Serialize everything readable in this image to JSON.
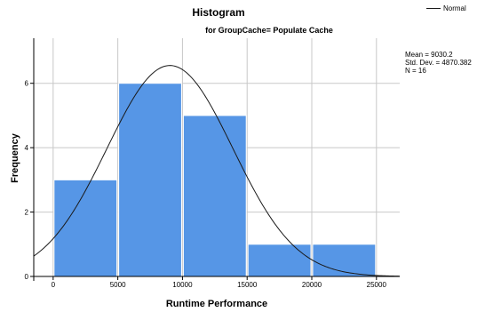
{
  "chart_data": {
    "type": "bar",
    "title": "Histogram",
    "subtitle": "for GroupCache= Populate Cache",
    "xlabel": "Runtime Performance",
    "ylabel": "Frequency",
    "bin_width": 5000,
    "bins": [
      {
        "start": 0,
        "end": 5000,
        "count": 3
      },
      {
        "start": 5000,
        "end": 10000,
        "count": 6
      },
      {
        "start": 10000,
        "end": 15000,
        "count": 5
      },
      {
        "start": 15000,
        "end": 20000,
        "count": 1
      },
      {
        "start": 20000,
        "end": 25000,
        "count": 1
      }
    ],
    "x_ticks": [
      0,
      5000,
      10000,
      15000,
      20000,
      25000
    ],
    "y_ticks": [
      0,
      2,
      4,
      6
    ],
    "xlim": [
      -1500,
      26800
    ],
    "ylim": [
      0,
      7.4
    ],
    "grid": true,
    "legend_label": "Normal",
    "normal_curve": {
      "mean": 9030.2,
      "sd": 4870.382,
      "n": 16
    },
    "stats_text": [
      "Mean = 9030.2",
      "Std. Dev. = 4870.382",
      "N = 16"
    ],
    "colors": {
      "bar": "#5696e6",
      "bar_edge": "#ffffff",
      "curve": "#1a1a1a",
      "grid": "#c8c8c8",
      "axis": "#000000"
    }
  }
}
